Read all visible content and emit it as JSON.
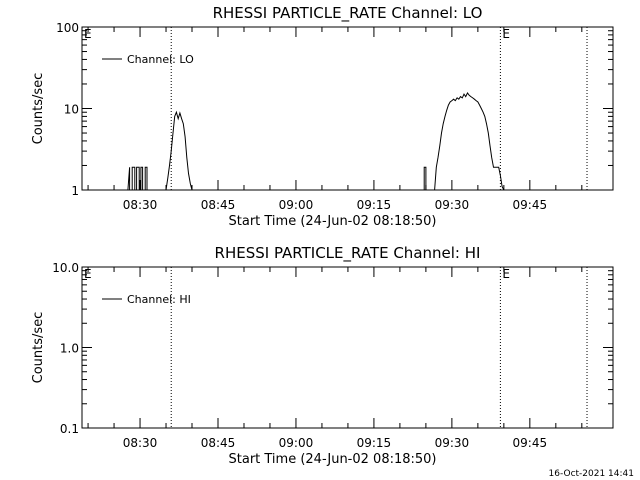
{
  "timestamp": "16-Oct-2021 14:41",
  "chart_data": [
    {
      "type": "line",
      "title": "RHESSI PARTICLE_RATE Channel: LO",
      "xlabel": "Start Time (24-Jun-02 08:18:50)",
      "ylabel": "Counts/sec",
      "y_scale": "log",
      "ylim": [
        1,
        100
      ],
      "y_ticks": [
        "1",
        "10",
        "100"
      ],
      "xlim": [
        "08:18:50",
        "10:01:00"
      ],
      "x_ticks": [
        "08:30",
        "08:45",
        "09:00",
        "09:15",
        "09:30",
        "09:45"
      ],
      "legend": {
        "position": "top-left",
        "entries": [
          "Channel: LO"
        ]
      },
      "markers": [
        {
          "label": "E",
          "x": "08:18:50",
          "style": "solid"
        },
        {
          "label": "",
          "x": "08:36:00",
          "style": "dotted"
        },
        {
          "label": "E",
          "x": "09:39:20",
          "style": "dotted"
        },
        {
          "label": "",
          "x": "09:56:00",
          "style": "dotted"
        }
      ],
      "series": [
        {
          "x": [
            "08:27:40",
            "08:28:00",
            "08:28:00",
            "08:28:30",
            "08:28:30",
            "08:29:00",
            "08:29:00",
            "08:29:20",
            "08:29:20",
            "08:29:50",
            "08:29:50",
            "08:30:10",
            "08:30:10",
            "08:30:30",
            "08:30:30",
            "08:31:00",
            "08:31:00",
            "08:31:20",
            "08:31:20",
            "08:35:00",
            "08:35:20",
            "08:35:40",
            "08:36:00",
            "08:36:20",
            "08:36:40",
            "08:37:00",
            "08:37:20",
            "08:37:40",
            "08:38:00",
            "08:38:20",
            "08:38:40",
            "08:39:00",
            "08:39:20",
            "08:39:40",
            "08:40:00",
            "08:40:20",
            "08:40:40",
            "09:24:40",
            "09:24:40",
            "09:25:00",
            "09:25:00",
            "09:26:40",
            "09:27:00",
            "09:27:20",
            "09:27:40",
            "09:28:00",
            "09:28:20",
            "09:28:40",
            "09:29:00",
            "09:29:20",
            "09:29:40",
            "09:30:00",
            "09:30:20",
            "09:30:40",
            "09:31:00",
            "09:31:20",
            "09:31:40",
            "09:32:00",
            "09:32:20",
            "09:32:40",
            "09:33:00",
            "09:33:20",
            "09:33:40",
            "09:34:00",
            "09:34:20",
            "09:34:40",
            "09:35:00",
            "09:35:20",
            "09:35:40",
            "09:36:00",
            "09:36:20",
            "09:36:40",
            "09:37:00",
            "09:37:20",
            "09:37:40",
            "09:38:00",
            "09:38:20",
            "09:38:40",
            "09:39:00",
            "09:39:20",
            "09:39:40",
            "09:40:00"
          ],
          "y": [
            1,
            1.9,
            1,
            1,
            1.9,
            1.9,
            1,
            1,
            1.9,
            1.9,
            1,
            1,
            1.9,
            1.9,
            1,
            1,
            1.9,
            1.9,
            1,
            1,
            1.4,
            2,
            3,
            5,
            8,
            9,
            7.5,
            8.8,
            7.5,
            6.5,
            4.5,
            2.5,
            1.6,
            1.2,
            1,
            1,
            1,
            1,
            1.9,
            1.9,
            1,
            1,
            1.9,
            2.5,
            3.5,
            5,
            6.5,
            8,
            9.5,
            11,
            12,
            12.5,
            13,
            12.5,
            13.5,
            13,
            14,
            13.5,
            15,
            14,
            15.5,
            14.5,
            14,
            13.5,
            13,
            12.5,
            12,
            11,
            10,
            9,
            8,
            6.5,
            5,
            3.5,
            2.5,
            1.9,
            1.9,
            1.9,
            1.9,
            1.5,
            1.1,
            1
          ]
        }
      ]
    },
    {
      "type": "line",
      "title": "RHESSI PARTICLE_RATE Channel: HI",
      "xlabel": "Start Time (24-Jun-02 08:18:50)",
      "ylabel": "Counts/sec",
      "y_scale": "log",
      "ylim": [
        0.1,
        10
      ],
      "y_ticks": [
        "0.1",
        "1.0",
        "10.0"
      ],
      "xlim": [
        "08:18:50",
        "10:01:00"
      ],
      "x_ticks": [
        "08:30",
        "08:45",
        "09:00",
        "09:15",
        "09:30",
        "09:45"
      ],
      "legend": {
        "position": "top-left",
        "entries": [
          "Channel: HI"
        ]
      },
      "markers": [
        {
          "label": "E",
          "x": "08:18:50",
          "style": "solid"
        },
        {
          "label": "",
          "x": "08:36:00",
          "style": "dotted"
        },
        {
          "label": "E",
          "x": "09:39:20",
          "style": "dotted"
        },
        {
          "label": "",
          "x": "09:56:00",
          "style": "dotted"
        }
      ],
      "series": []
    }
  ]
}
